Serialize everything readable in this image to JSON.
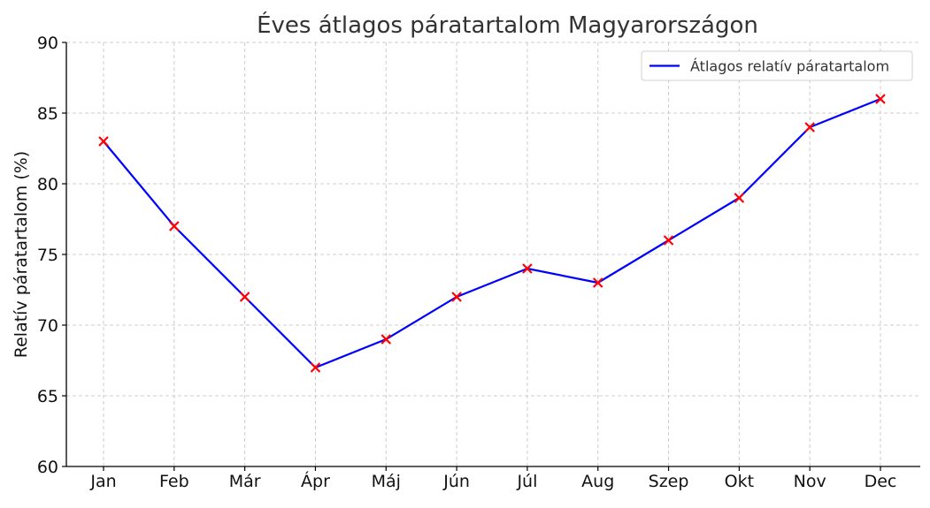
{
  "chart_data": {
    "type": "line",
    "title": "Éves átlagos páratartalom Magyarországon",
    "xlabel": "",
    "ylabel": "Relatív páratartalom (%)",
    "categories": [
      "Jan",
      "Feb",
      "Már",
      "Ápr",
      "Máj",
      "Jún",
      "Júl",
      "Aug",
      "Szep",
      "Okt",
      "Nov",
      "Dec"
    ],
    "series": [
      {
        "name": "Átlagos relatív páratartalom",
        "values": [
          83,
          77,
          72,
          67,
          69,
          72,
          74,
          73,
          76,
          79,
          84,
          86
        ],
        "line_color": "#0000ff",
        "marker": "x",
        "marker_color": "#ff0000"
      }
    ],
    "ylim": [
      60,
      90
    ],
    "yticks": [
      60,
      65,
      70,
      75,
      80,
      85,
      90
    ],
    "grid": true,
    "legend_position": "top-right"
  }
}
